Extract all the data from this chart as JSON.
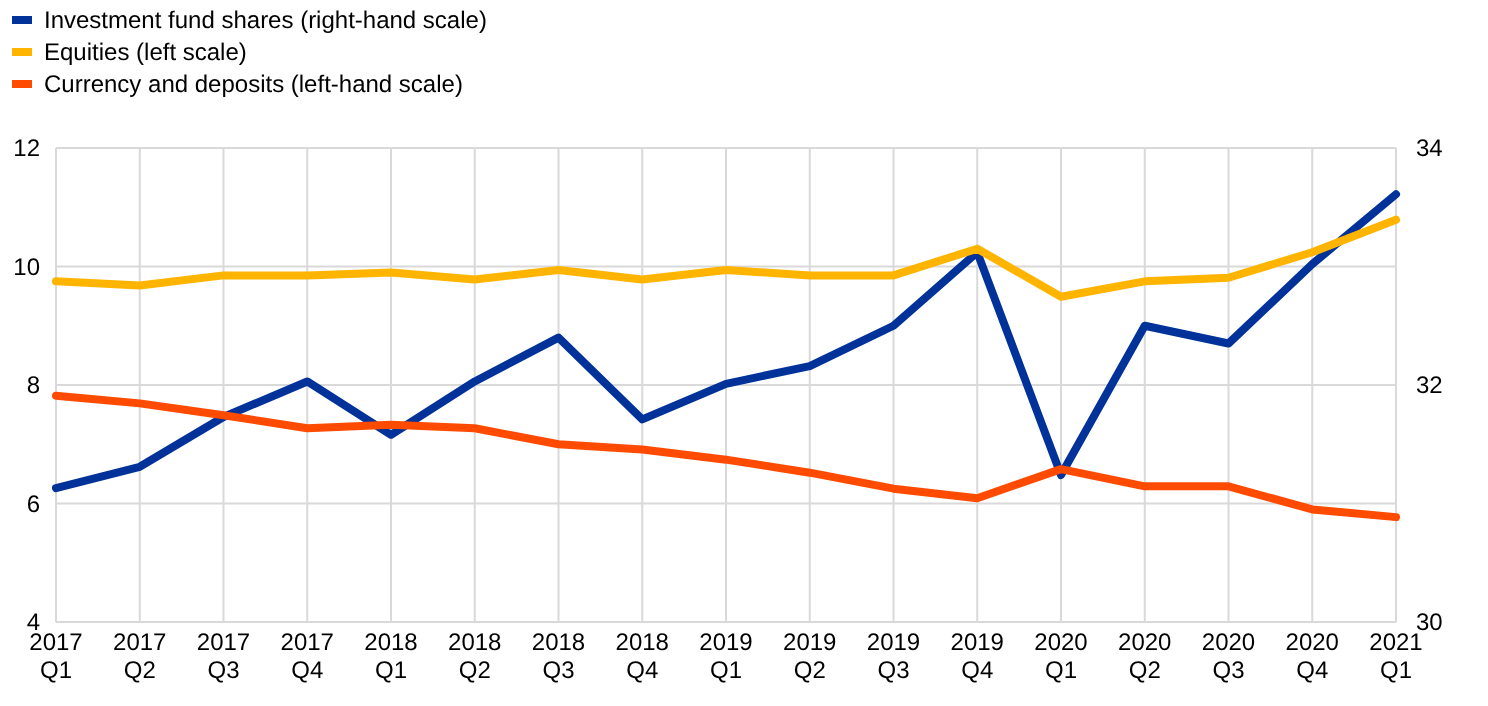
{
  "chart_data": {
    "type": "line",
    "categories": [
      "2017 Q1",
      "2017 Q2",
      "2017 Q3",
      "2017 Q4",
      "2018 Q1",
      "2018 Q2",
      "2018 Q3",
      "2018 Q4",
      "2019 Q1",
      "2019 Q2",
      "2019 Q3",
      "2019 Q4",
      "2020 Q1",
      "2020 Q2",
      "2020 Q3",
      "2020 Q4",
      "2021 Q1"
    ],
    "series": [
      {
        "name": "Investment fund shares (right-hand scale)",
        "color": "#003299",
        "axis": "y2",
        "values": [
          31.13,
          31.31,
          31.73,
          32.03,
          31.58,
          32.03,
          32.4,
          31.71,
          32.01,
          32.16,
          32.5,
          33.12,
          31.24,
          32.5,
          32.35,
          33.02,
          33.61
        ]
      },
      {
        "name": "Equities (left scale)",
        "color": "#ffb400",
        "values": [
          9.75,
          9.68,
          9.85,
          9.85,
          9.9,
          9.78,
          9.94,
          9.78,
          9.94,
          9.85,
          9.85,
          10.3,
          9.49,
          9.75,
          9.81,
          10.24,
          10.79
        ]
      },
      {
        "name": "Currency and deposits (left-hand scale)",
        "color": "#ff4b00",
        "values": [
          7.82,
          7.69,
          7.49,
          7.27,
          7.33,
          7.27,
          7.0,
          6.91,
          6.74,
          6.52,
          6.25,
          6.09,
          6.58,
          6.29,
          6.29,
          5.9,
          5.77
        ]
      }
    ],
    "ylim": [
      4,
      12
    ],
    "yticks": [
      4,
      6,
      8,
      10,
      12
    ],
    "y2lim": [
      30,
      34
    ],
    "y2ticks": [
      30,
      32,
      34
    ],
    "grid": true,
    "legend": "top left",
    "marker": "none",
    "line_style": "solid"
  }
}
